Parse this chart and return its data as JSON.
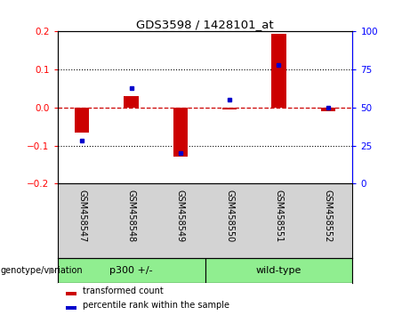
{
  "title": "GDS3598 / 1428101_at",
  "samples": [
    "GSM458547",
    "GSM458548",
    "GSM458549",
    "GSM458550",
    "GSM458551",
    "GSM458552"
  ],
  "transformed_counts": [
    -0.065,
    0.03,
    -0.13,
    -0.005,
    0.195,
    -0.01
  ],
  "percentile_ranks": [
    28,
    63,
    20,
    55,
    78,
    50
  ],
  "group1_name": "p300 +/-",
  "group1_samples": [
    0,
    1,
    2
  ],
  "group2_name": "wild-type",
  "group2_samples": [
    3,
    4,
    5
  ],
  "group_color": "#90ee90",
  "label_bg_color": "#d3d3d3",
  "ylim_left": [
    -0.2,
    0.2
  ],
  "ylim_right": [
    0,
    100
  ],
  "yticks_left": [
    -0.2,
    -0.1,
    0.0,
    0.1,
    0.2
  ],
  "yticks_right": [
    0,
    25,
    50,
    75,
    100
  ],
  "bar_color": "#cc0000",
  "dot_color": "#0000cc",
  "hline_color": "#cc0000",
  "plot_bg": "white",
  "legend_red_label": "transformed count",
  "legend_blue_label": "percentile rank within the sample",
  "genotype_label": "genotype/variation"
}
